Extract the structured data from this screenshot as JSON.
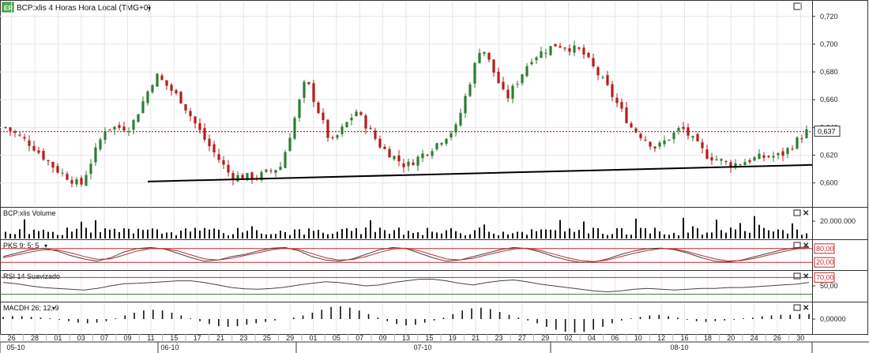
{
  "window": {
    "logo_text": "ER",
    "title": "BCP:xlis 4 Horas Hora Local (TMG+0)"
  },
  "colors": {
    "up": "#2e7d32",
    "down": "#b71c1c",
    "reference_line": "#c62828",
    "trendline": "#000000",
    "signal": "#c62828",
    "grid": "#e6e6e6",
    "panel_border": "#333333"
  },
  "chart_data": [
    {
      "type": "candlestick",
      "panel": "price",
      "ylim": [
        0.585,
        0.725
      ],
      "yticks": [
        "0,720",
        "0,700",
        "0,680",
        "0,660",
        "0,640",
        "0,620",
        "0,600"
      ],
      "last_value_label": "0,637",
      "reference_level": 0.637,
      "trendline": {
        "from": [
          0.601
        ],
        "to": [
          0.613
        ]
      },
      "approx_path": [
        [
          "05-10",
          0.64
        ],
        [
          "03",
          0.628
        ],
        [
          "07",
          0.61
        ],
        [
          "09",
          0.598
        ],
        [
          "11",
          0.64
        ],
        [
          "17",
          0.64
        ],
        [
          "21",
          0.678
        ],
        [
          "23",
          0.66
        ],
        [
          "27",
          0.63
        ],
        [
          "29",
          0.605
        ],
        [
          "01",
          0.604
        ],
        [
          "05",
          0.612
        ],
        [
          "07",
          0.675
        ],
        [
          "09",
          0.628
        ],
        [
          "13",
          0.652
        ],
        [
          "15",
          0.626
        ],
        [
          "19",
          0.612
        ],
        [
          "21",
          0.625
        ],
        [
          "23",
          0.64
        ],
        [
          "27",
          0.7
        ],
        [
          "29",
          0.66
        ],
        [
          "02",
          0.69
        ],
        [
          "04",
          0.7
        ],
        [
          "06",
          0.695
        ],
        [
          "10",
          0.67
        ],
        [
          "12",
          0.64
        ],
        [
          "14",
          0.625
        ],
        [
          "18",
          0.64
        ],
        [
          "20",
          0.62
        ],
        [
          "24",
          0.613
        ],
        [
          "26",
          0.618
        ],
        [
          "30",
          0.62
        ],
        [
          "end",
          0.637
        ]
      ]
    },
    {
      "type": "bar",
      "panel": "volume",
      "title": "BCP:xlis Volume",
      "yticks": [
        "20.000.000"
      ]
    },
    {
      "type": "line",
      "panel": "stochastic",
      "title": "PKS 9; 5; 5",
      "ylim": [
        0,
        100
      ],
      "levels": [
        "80,00",
        "20,00"
      ],
      "series": [
        {
          "color": "#444444",
          "values": [
            45,
            60,
            75,
            82,
            70,
            50,
            35,
            25,
            40,
            65,
            80,
            85,
            78,
            60,
            40,
            25,
            30,
            45,
            55,
            70,
            82,
            85,
            70,
            45,
            30,
            25,
            35,
            55,
            75,
            85,
            80,
            60,
            40,
            25,
            30,
            45,
            60,
            75,
            85,
            80,
            65,
            45,
            30,
            20,
            22,
            35,
            55,
            70,
            80,
            82,
            75,
            60,
            40,
            25,
            22,
            30,
            45,
            60,
            75,
            84,
            88
          ]
        },
        {
          "color": "#c62828",
          "values": [
            40,
            52,
            65,
            75,
            74,
            62,
            46,
            33,
            35,
            52,
            70,
            80,
            80,
            70,
            52,
            35,
            30,
            38,
            50,
            62,
            75,
            82,
            76,
            58,
            40,
            30,
            32,
            45,
            63,
            78,
            82,
            70,
            52,
            35,
            30,
            38,
            52,
            66,
            78,
            82,
            72,
            56,
            40,
            28,
            23,
            30,
            45,
            60,
            72,
            80,
            78,
            66,
            50,
            35,
            26,
            28,
            38,
            52,
            66,
            78,
            85
          ]
        }
      ]
    },
    {
      "type": "line",
      "panel": "rsi",
      "title": "RSI 14 Suavizado",
      "ylim": [
        20,
        80
      ],
      "levels": [
        "70,00"
      ],
      "yticks": [
        "50,00"
      ],
      "series": [
        {
          "color": "#444444",
          "values": [
            58,
            55,
            50,
            46,
            44,
            42,
            40,
            44,
            50,
            55,
            56,
            58,
            60,
            62,
            62,
            58,
            52,
            46,
            43,
            42,
            44,
            47,
            52,
            56,
            60,
            58,
            54,
            50,
            52,
            58,
            62,
            66,
            66,
            62,
            56,
            52,
            58,
            62,
            64,
            60,
            54,
            50,
            46,
            42,
            38,
            36,
            38,
            42,
            44,
            42,
            40,
            42,
            44,
            44,
            46,
            46,
            48,
            50,
            52,
            54,
            58
          ]
        }
      ]
    },
    {
      "type": "bar",
      "panel": "macd",
      "title": "MACDH 26; 12; 9",
      "yticks": [
        "0,00000"
      ],
      "values": [
        3,
        4,
        4,
        3,
        2,
        1,
        -1,
        -3,
        -5,
        -6,
        -5,
        -3,
        1,
        5,
        9,
        12,
        13,
        12,
        9,
        5,
        1,
        -3,
        -7,
        -10,
        -11,
        -10,
        -8,
        -6,
        -4,
        -2,
        0,
        2,
        5,
        9,
        13,
        17,
        18,
        16,
        12,
        7,
        2,
        -3,
        -7,
        -9,
        -8,
        -5,
        -2,
        2,
        7,
        12,
        15,
        16,
        14,
        10,
        6,
        2,
        -2,
        -6,
        -11,
        -15,
        -18,
        -19,
        -18,
        -15,
        -11,
        -6,
        -2,
        1,
        3,
        5,
        6,
        4,
        2,
        -1,
        -3,
        -4,
        -3,
        -2,
        -1,
        1,
        2,
        4,
        5,
        6,
        6,
        7,
        7
      ]
    }
  ],
  "x_axis": {
    "tick_labels": [
      "26",
      "28",
      "01",
      "03",
      "07",
      "09",
      "11",
      "15",
      "17",
      "21",
      "23",
      "25",
      "29",
      "01",
      "05",
      "07",
      "09",
      "13",
      "15",
      "19",
      "21",
      "23",
      "27",
      "29",
      "02",
      "04",
      "06",
      "10",
      "12",
      "16",
      "18",
      "20",
      "24",
      "26",
      "30"
    ],
    "month_labels": [
      "05-10",
      "06-10",
      "07-10",
      "08-10"
    ]
  }
}
